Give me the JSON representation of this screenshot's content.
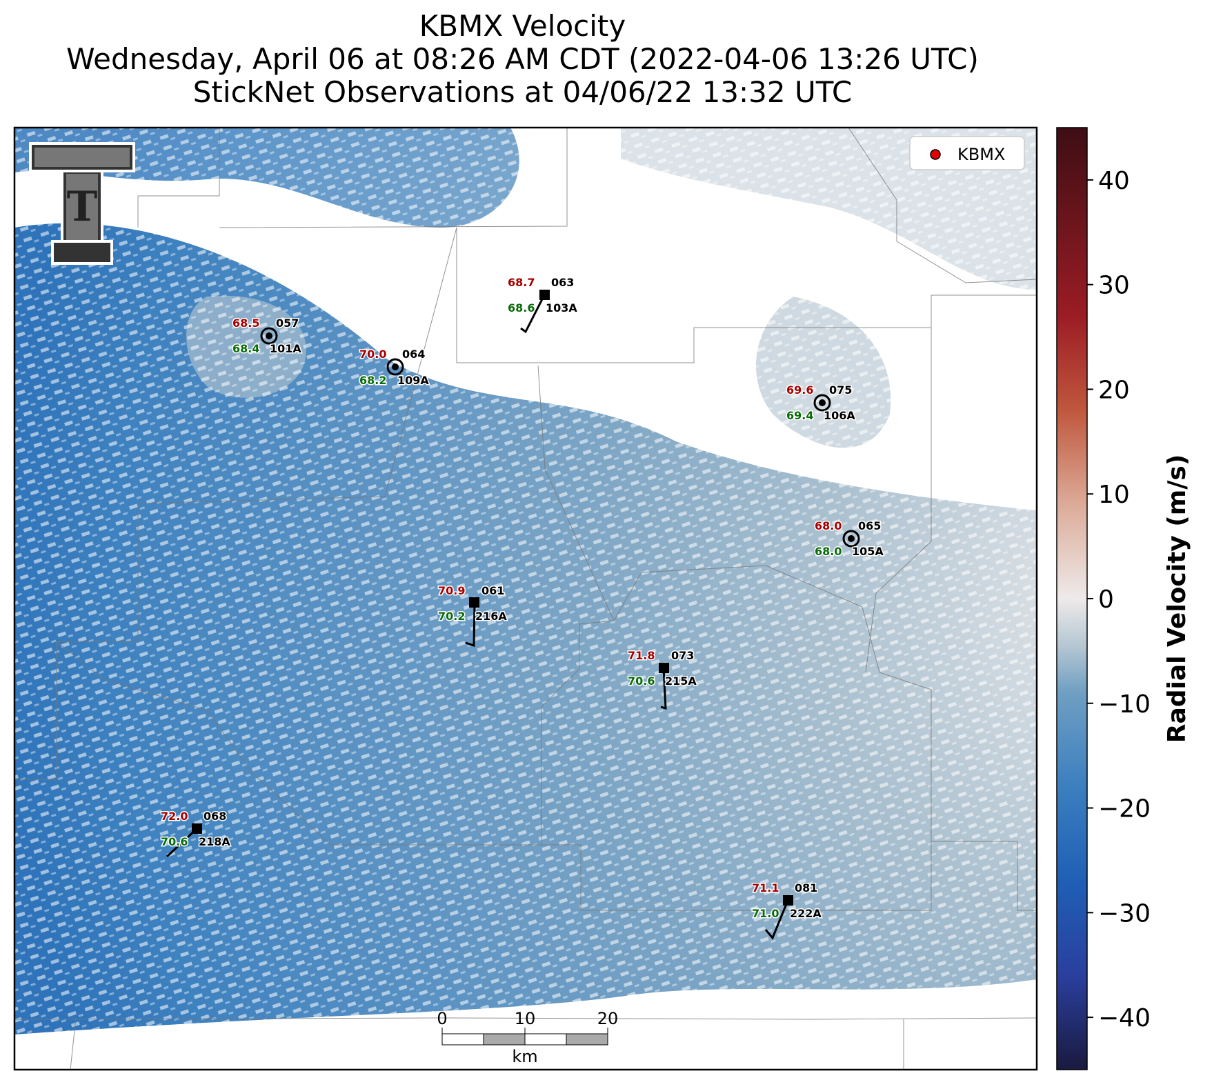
{
  "header": {
    "title_line1": "KBMX Velocity",
    "title_line2": "Wednesday, April 06 at 08:26 AM CDT (2022-04-06 13:26 UTC)",
    "title_line3": "StickNet Observations at 04/06/22 13:32 UTC"
  },
  "legend": {
    "label": "KBMX",
    "marker_color": "#e00000"
  },
  "logo": {
    "text": "T",
    "description": "Texas Tech double-T logo"
  },
  "colorbar": {
    "label": "Radial Velocity (m/s)",
    "range": [
      -45,
      45
    ],
    "ticks": [
      "40",
      "30",
      "20",
      "10",
      "0",
      "−10",
      "−20",
      "−30",
      "−40"
    ],
    "tick_values": [
      40,
      30,
      20,
      10,
      0,
      -10,
      -20,
      -30,
      -40
    ],
    "color_stops": [
      "#1a1a3f",
      "#2a3f9e",
      "#1f5fb5",
      "#3b7fbf",
      "#6f9fc2",
      "#b5c7d3",
      "#eeeaea",
      "#dcab98",
      "#c0573d",
      "#9b1c24",
      "#3d0e14"
    ]
  },
  "scalebar": {
    "labels": [
      "0",
      "10",
      "20"
    ],
    "unit": "km"
  },
  "stations": [
    {
      "temp": "68.5",
      "dew": "68.4",
      "num": "057",
      "probe": "101A",
      "marker": "calm"
    },
    {
      "temp": "70.0",
      "dew": "68.2",
      "num": "064",
      "probe": "109A",
      "marker": "calm"
    },
    {
      "temp": "68.7",
      "dew": "68.6",
      "num": "063",
      "probe": "103A",
      "marker": "barb"
    },
    {
      "temp": "69.6",
      "dew": "69.4",
      "num": "075",
      "probe": "106A",
      "marker": "calm"
    },
    {
      "temp": "68.0",
      "dew": "68.0",
      "num": "065",
      "probe": "105A",
      "marker": "calm"
    },
    {
      "temp": "70.9",
      "dew": "70.2",
      "num": "061",
      "probe": "216A",
      "marker": "barb"
    },
    {
      "temp": "71.8",
      "dew": "70.6",
      "num": "073",
      "probe": "215A",
      "marker": "barb"
    },
    {
      "temp": "72.0",
      "dew": "70.6",
      "num": "068",
      "probe": "218A",
      "marker": "barb"
    },
    {
      "temp": "71.1",
      "dew": "71.0",
      "num": "081",
      "probe": "222A",
      "marker": "barb"
    }
  ]
}
